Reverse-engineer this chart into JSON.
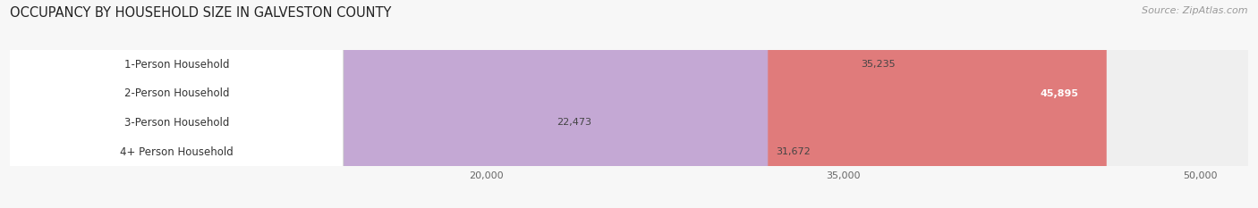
{
  "title": "OCCUPANCY BY HOUSEHOLD SIZE IN GALVESTON COUNTY",
  "source": "Source: ZipAtlas.com",
  "categories": [
    "1-Person Household",
    "2-Person Household",
    "3-Person Household",
    "4+ Person Household"
  ],
  "values": [
    35235,
    45895,
    22473,
    31672
  ],
  "bar_colors": [
    "#f5b87a",
    "#e07b7b",
    "#a8c8e8",
    "#c4a8d4"
  ],
  "xlim_min": 0,
  "xlim_max": 52000,
  "xticks": [
    20000,
    35000,
    50000
  ],
  "xtick_labels": [
    "20,000",
    "35,000",
    "50,000"
  ],
  "title_fontsize": 10.5,
  "source_fontsize": 8,
  "label_fontsize": 8.5,
  "value_fontsize": 8,
  "background_color": "#f7f7f7",
  "bar_bg_color": "#efefef",
  "grid_color": "#dddddd",
  "label_bg_color": "#ffffff"
}
